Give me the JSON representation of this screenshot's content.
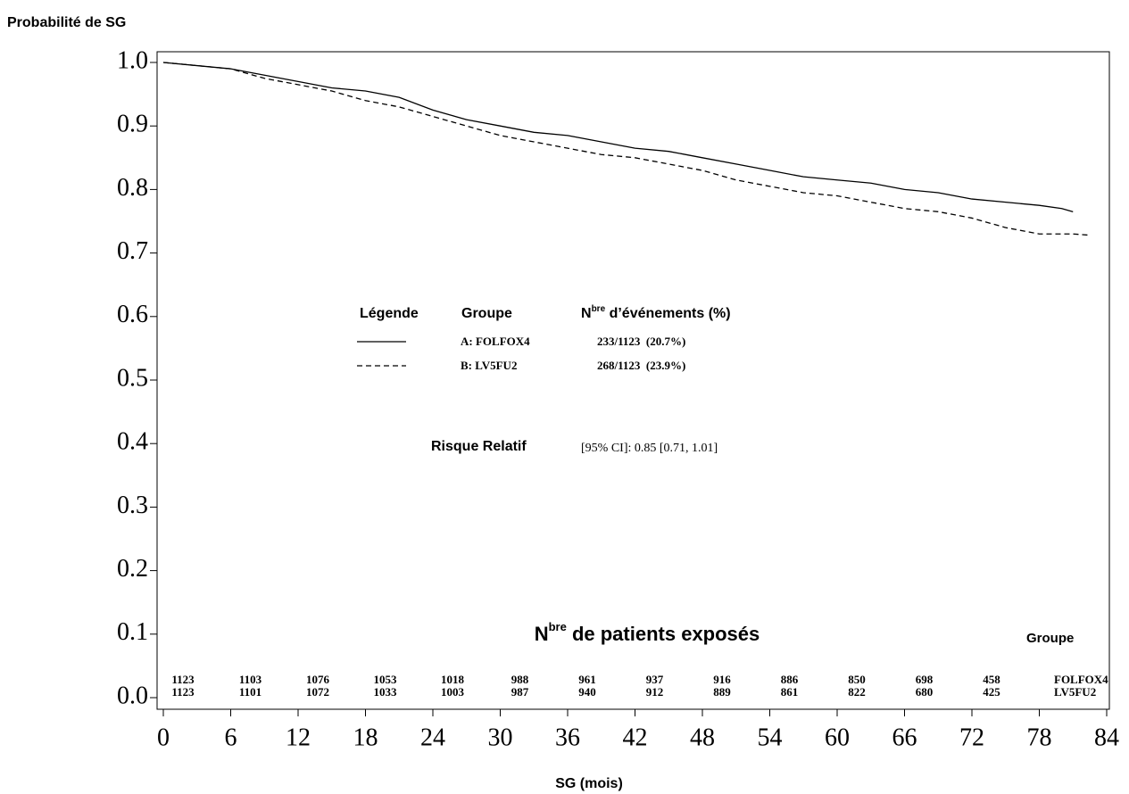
{
  "chart_data": {
    "type": "line",
    "ylabel": "Probabilité de SG",
    "xlabel": "SG (mois)",
    "xlim": [
      0,
      84
    ],
    "ylim": [
      0,
      1
    ],
    "xticks": [
      0,
      6,
      12,
      18,
      24,
      30,
      36,
      42,
      48,
      54,
      60,
      66,
      72,
      78,
      84
    ],
    "yticks": [
      {
        "value": 0,
        "label": "0.0"
      },
      0.1,
      0.2,
      0.3,
      0.4,
      0.5,
      0.6,
      0.7,
      0.8,
      0.9,
      {
        "value": 1,
        "label": "1.0"
      }
    ],
    "legend_header": {
      "key": "Légende",
      "group": "Groupe",
      "events_prefix": "N",
      "events_sup": "bre",
      "events_text": " d’événements (%)"
    },
    "series": [
      {
        "name": "A: FOLFOX4",
        "events": "233/1123  (20.7%)",
        "color": "#000000",
        "dash": "solid",
        "x": [
          0,
          3,
          6,
          9,
          12,
          15,
          18,
          21,
          24,
          27,
          30,
          33,
          36,
          39,
          42,
          45,
          48,
          51,
          54,
          57,
          60,
          63,
          66,
          69,
          72,
          75,
          78,
          80,
          81
        ],
        "values": [
          1.0,
          0.995,
          0.99,
          0.98,
          0.97,
          0.96,
          0.955,
          0.945,
          0.925,
          0.91,
          0.9,
          0.89,
          0.885,
          0.875,
          0.865,
          0.86,
          0.85,
          0.84,
          0.83,
          0.82,
          0.815,
          0.81,
          0.8,
          0.795,
          0.785,
          0.78,
          0.775,
          0.77,
          0.765
        ]
      },
      {
        "name": "B: LV5FU2",
        "events": "268/1123  (23.9%)",
        "color": "#000000",
        "dash": "dashed",
        "x": [
          0,
          3,
          6,
          9,
          12,
          15,
          18,
          21,
          24,
          27,
          30,
          33,
          36,
          39,
          42,
          45,
          48,
          51,
          54,
          57,
          60,
          63,
          66,
          69,
          72,
          75,
          78,
          81,
          82.5
        ],
        "values": [
          1.0,
          0.995,
          0.99,
          0.975,
          0.965,
          0.955,
          0.94,
          0.93,
          0.915,
          0.9,
          0.885,
          0.875,
          0.865,
          0.855,
          0.85,
          0.84,
          0.83,
          0.815,
          0.805,
          0.795,
          0.79,
          0.78,
          0.77,
          0.765,
          0.755,
          0.74,
          0.73,
          0.73,
          0.728
        ]
      }
    ],
    "hazard_ratio": {
      "label": "Risque Relatif",
      "text": "[95% CI]: 0.85 [0.71, 1.01]"
    },
    "at_risk": {
      "title_prefix": "N",
      "title_sup": "bre",
      "title_text": " de patients exposés",
      "group_header": "Groupe",
      "rows": [
        {
          "group": "FOLFOX4",
          "counts": [
            1123,
            1103,
            1076,
            1053,
            1018,
            988,
            961,
            937,
            916,
            886,
            850,
            698,
            458
          ]
        },
        {
          "group": "LV5FU2",
          "counts": [
            1123,
            1101,
            1072,
            1033,
            1003,
            987,
            940,
            912,
            889,
            861,
            822,
            680,
            425
          ]
        }
      ]
    }
  }
}
